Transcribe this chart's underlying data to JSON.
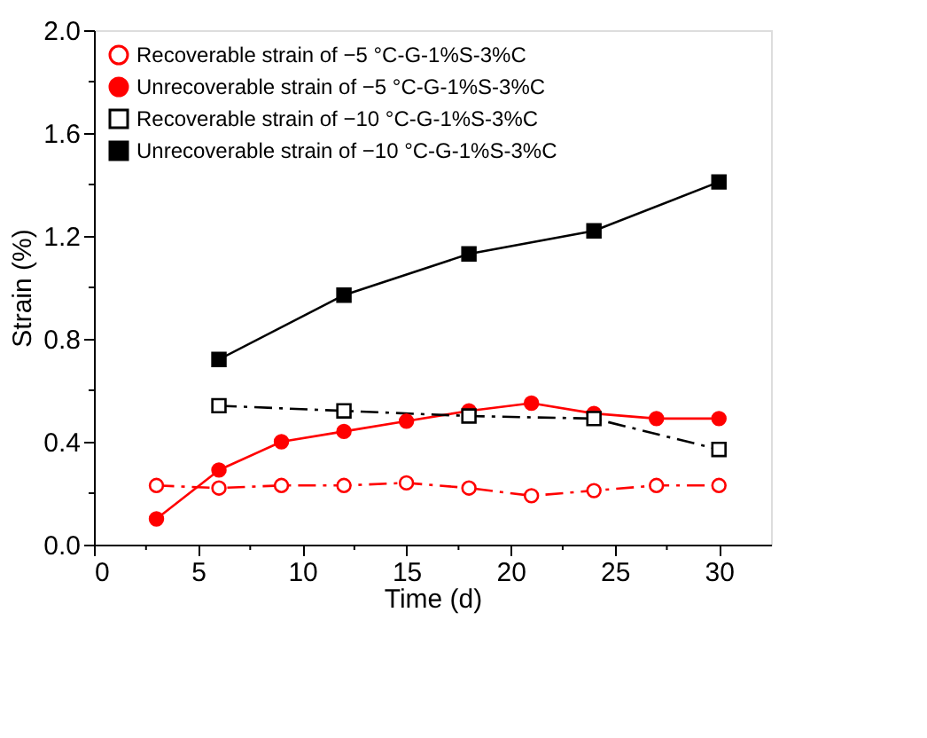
{
  "chart_data": {
    "type": "line",
    "xlabel": "Time (d)",
    "ylabel": "Strain (%)",
    "xlim": [
      0,
      32.5
    ],
    "ylim": [
      0,
      2.0
    ],
    "xticks": [
      0,
      {
        "value": 2.5,
        "label": null
      },
      5,
      {
        "value": 7.5,
        "label": null
      },
      10,
      {
        "value": 12.5,
        "label": null
      },
      15,
      {
        "value": 17.5,
        "label": null
      },
      20,
      {
        "value": 22.5,
        "label": null
      },
      25,
      {
        "value": 27.5,
        "label": null
      },
      30
    ],
    "yticks": [
      {
        "value": 0,
        "label": "0.0"
      },
      {
        "value": 0.2,
        "label": null
      },
      {
        "value": 0.4,
        "label": "0.4"
      },
      {
        "value": 0.6,
        "label": null
      },
      {
        "value": 0.8,
        "label": "0.8"
      },
      {
        "value": 1.0,
        "label": null
      },
      {
        "value": 1.2,
        "label": "1.2"
      },
      {
        "value": 1.4,
        "label": null
      },
      {
        "value": 1.6,
        "label": "1.6"
      },
      {
        "value": 1.8,
        "label": null
      },
      {
        "value": 2.0,
        "label": "2.0"
      }
    ],
    "grid": false,
    "legend": "top left",
    "series": [
      {
        "name": "Recoverable strain of −5 °C-G-1%S-3%C",
        "color": "#ff0000",
        "marker": "circle",
        "line_style": "dashed",
        "x": [
          3,
          6,
          9,
          12,
          15,
          18,
          21,
          24,
          27,
          30
        ],
        "values": [
          0.23,
          0.22,
          0.23,
          0.23,
          0.24,
          0.22,
          0.19,
          0.21,
          0.23,
          0.23
        ]
      },
      {
        "name": "Unrecoverable strain of −5 °C-G-1%S-3%C",
        "color": "#ff0000",
        "marker": "circle",
        "line_style": "solid",
        "x": [
          3,
          6,
          9,
          12,
          15,
          18,
          21,
          24,
          27,
          30
        ],
        "values": [
          0.1,
          0.29,
          0.4,
          0.44,
          0.48,
          0.52,
          0.55,
          0.51,
          0.49,
          0.49
        ]
      },
      {
        "name": "Recoverable strain of −10 °C-G-1%S-3%C",
        "color": "#000000",
        "marker": "square",
        "line_style": "dashed",
        "x": [
          6,
          12,
          18,
          24,
          30
        ],
        "values": [
          0.54,
          0.52,
          0.5,
          0.49,
          0.37
        ]
      },
      {
        "name": "Unrecoverable strain of −10 °C-G-1%S-3%C",
        "color": "#000000",
        "marker": "square",
        "line_style": "solid",
        "x": [
          6,
          12,
          18,
          24,
          30
        ],
        "values": [
          0.72,
          0.97,
          1.13,
          1.22,
          1.41
        ]
      }
    ]
  }
}
